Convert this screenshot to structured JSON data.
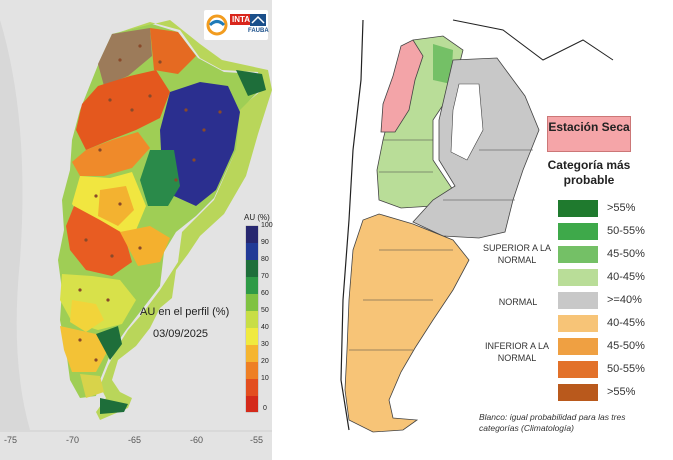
{
  "left_map": {
    "logos": [
      "INTA",
      "FAUBA"
    ],
    "colorbar_title": "AU (%)",
    "colorbar_ticks": [
      "100",
      "90",
      "80",
      "70",
      "60",
      "50",
      "40",
      "30",
      "20",
      "10",
      "0"
    ],
    "colorbar_colors": [
      "#27276f",
      "#213a96",
      "#1e6e3a",
      "#2e9a46",
      "#7fc241",
      "#c8de46",
      "#f0ea3f",
      "#f5b530",
      "#ee7f24",
      "#e34e1f",
      "#d42a1a"
    ],
    "title": "AU en el perfil (%)",
    "date": "03/09/2025",
    "x_ticks": [
      "-75",
      "-70",
      "-65",
      "-60",
      "-55"
    ]
  },
  "right_map": {
    "season_label": "Estación Seca",
    "legend_title": "Categoría más probable",
    "legend_items": [
      {
        "label": ">55%",
        "color": "#1f7a2e"
      },
      {
        "label": "50-55%",
        "color": "#3ea94a"
      },
      {
        "label": "45-50%",
        "color": "#74c066"
      },
      {
        "label": "40-45%",
        "color": "#b9dd98"
      },
      {
        "label": ">=40%",
        "color": "#c8c8c8"
      },
      {
        "label": "40-45%",
        "color": "#f7c477"
      },
      {
        "label": "45-50%",
        "color": "#efa042"
      },
      {
        "label": "50-55%",
        "color": "#e2712a"
      },
      {
        "label": ">55%",
        "color": "#b9591c"
      }
    ],
    "category_superior": "SUPERIOR A LA NORMAL",
    "category_normal": "NORMAL",
    "category_inferior": "INFERIOR A LA NORMAL",
    "note": "Blanco: igual probabilidad para las tres categorías (Climatología)"
  }
}
